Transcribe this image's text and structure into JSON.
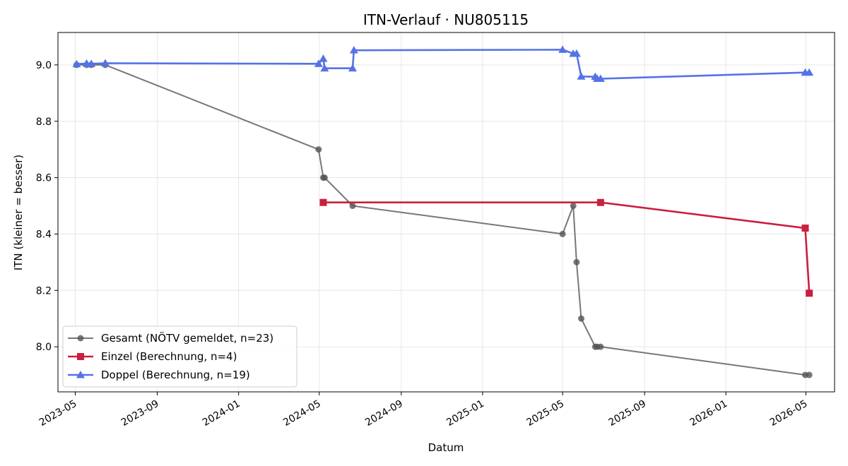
{
  "chart_data": {
    "type": "line",
    "title": "ITN-Verlauf · NU805115",
    "xlabel": "Datum",
    "ylabel": "ITN  (kleiner = besser)",
    "ylim": [
      7.84,
      9.115
    ],
    "xlim": [
      "2023-04-05",
      "2026-06-13"
    ],
    "grid": true,
    "legend_position": "lower-left",
    "x_ticks": [
      "2023-05",
      "2023-09",
      "2024-01",
      "2024-05",
      "2024-09",
      "2025-01",
      "2025-05",
      "2025-09",
      "2026-01",
      "2026-05"
    ],
    "y_ticks": [
      "8.0",
      "8.2",
      "8.4",
      "8.6",
      "8.8",
      "9.0"
    ],
    "series": [
      {
        "name": "Gesamt (NÖTV gemeldet, n=23)",
        "color": "#555555",
        "marker": "circle",
        "points": [
          {
            "x": "2023-05-03",
            "y": 9.0
          },
          {
            "x": "2023-05-18",
            "y": 9.0
          },
          {
            "x": "2023-05-25",
            "y": 9.0
          },
          {
            "x": "2023-06-15",
            "y": 9.0
          },
          {
            "x": "2024-04-30",
            "y": 8.7
          },
          {
            "x": "2024-05-07",
            "y": 8.6
          },
          {
            "x": "2024-05-09",
            "y": 8.6
          },
          {
            "x": "2024-06-20",
            "y": 8.5
          },
          {
            "x": "2025-05-01",
            "y": 8.4
          },
          {
            "x": "2025-05-17",
            "y": 8.5
          },
          {
            "x": "2025-05-22",
            "y": 8.3
          },
          {
            "x": "2025-05-29",
            "y": 8.1
          },
          {
            "x": "2025-06-19",
            "y": 8.0
          },
          {
            "x": "2025-06-22",
            "y": 8.0
          },
          {
            "x": "2025-06-27",
            "y": 8.0
          },
          {
            "x": "2026-04-30",
            "y": 7.9
          },
          {
            "x": "2026-05-06",
            "y": 7.9
          }
        ]
      },
      {
        "name": "Einzel (Berechnung, n=4)",
        "color": "#c8203f",
        "marker": "square",
        "points": [
          {
            "x": "2024-05-07",
            "y": 8.512
          },
          {
            "x": "2025-06-27",
            "y": 8.512
          },
          {
            "x": "2026-04-30",
            "y": 8.421
          },
          {
            "x": "2026-05-06",
            "y": 8.19
          }
        ]
      },
      {
        "name": "Doppel (Berechnung, n=19)",
        "color": "#5572e8",
        "marker": "triangle",
        "points": [
          {
            "x": "2023-05-03",
            "y": 9.003
          },
          {
            "x": "2023-05-18",
            "y": 9.005
          },
          {
            "x": "2023-05-25",
            "y": 9.004
          },
          {
            "x": "2023-06-15",
            "y": 9.006
          },
          {
            "x": "2024-04-30",
            "y": 9.004
          },
          {
            "x": "2024-05-07",
            "y": 9.022
          },
          {
            "x": "2024-05-09",
            "y": 8.988
          },
          {
            "x": "2024-06-20",
            "y": 8.988
          },
          {
            "x": "2024-06-22",
            "y": 9.052
          },
          {
            "x": "2025-05-01",
            "y": 9.054
          },
          {
            "x": "2025-05-17",
            "y": 9.04
          },
          {
            "x": "2025-05-22",
            "y": 9.04
          },
          {
            "x": "2025-05-29",
            "y": 8.959
          },
          {
            "x": "2025-06-19",
            "y": 8.958
          },
          {
            "x": "2025-06-22",
            "y": 8.951
          },
          {
            "x": "2025-06-27",
            "y": 8.951
          },
          {
            "x": "2026-04-30",
            "y": 8.973
          },
          {
            "x": "2026-05-06",
            "y": 8.973
          }
        ]
      }
    ]
  }
}
